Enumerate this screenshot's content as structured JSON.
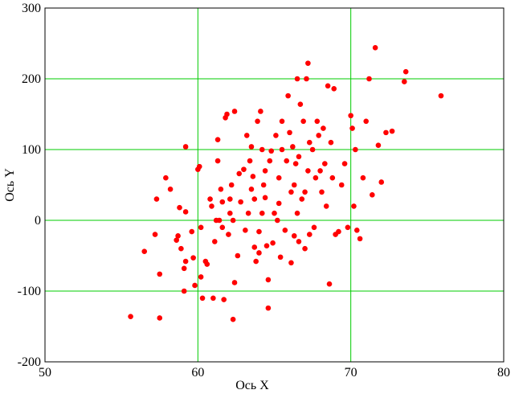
{
  "chart_data": {
    "type": "scatter",
    "title": "",
    "xlabel": "Ось X",
    "ylabel": "Ось Y",
    "xlim": [
      50,
      80
    ],
    "ylim": [
      -200,
      300
    ],
    "x_ticks": [
      50,
      60,
      70,
      80
    ],
    "y_ticks": [
      -200,
      -100,
      0,
      100,
      200,
      300
    ],
    "x_tick_labels": [
      "50",
      "60",
      "70",
      "80"
    ],
    "y_tick_labels": [
      "-200",
      "-100",
      "0",
      "100",
      "200",
      "300"
    ],
    "grid": true,
    "legend": "none",
    "colors": {
      "point": "#ff0000",
      "grid": "#00cc00",
      "frame": "#000000"
    },
    "series": [
      {
        "points": [
          [
            55.6,
            -136
          ],
          [
            56.5,
            -44
          ],
          [
            57.2,
            -20
          ],
          [
            57.3,
            30
          ],
          [
            57.5,
            -138
          ],
          [
            57.5,
            -76
          ],
          [
            57.9,
            60
          ],
          [
            58.2,
            44
          ],
          [
            58.6,
            -28
          ],
          [
            58.7,
            -22
          ],
          [
            58.8,
            18
          ],
          [
            58.9,
            -40
          ],
          [
            59.1,
            -100
          ],
          [
            59.1,
            -68
          ],
          [
            59.2,
            -58
          ],
          [
            59.2,
            104
          ],
          [
            59.2,
            12
          ],
          [
            59.6,
            -16
          ],
          [
            59.7,
            -53
          ],
          [
            59.8,
            -92
          ],
          [
            60.0,
            72
          ],
          [
            60.1,
            76
          ],
          [
            60.2,
            -10
          ],
          [
            60.2,
            -80
          ],
          [
            60.3,
            -110
          ],
          [
            60.5,
            -58
          ],
          [
            60.6,
            -62
          ],
          [
            60.8,
            30
          ],
          [
            60.9,
            20
          ],
          [
            61.0,
            -110
          ],
          [
            61.1,
            -30
          ],
          [
            61.2,
            0
          ],
          [
            61.3,
            84
          ],
          [
            61.3,
            114
          ],
          [
            61.4,
            0
          ],
          [
            61.5,
            44
          ],
          [
            61.6,
            26
          ],
          [
            61.6,
            -10
          ],
          [
            61.7,
            -112
          ],
          [
            61.8,
            145
          ],
          [
            61.9,
            150
          ],
          [
            62.0,
            -20
          ],
          [
            62.1,
            30
          ],
          [
            62.1,
            10
          ],
          [
            62.2,
            50
          ],
          [
            62.3,
            0
          ],
          [
            62.3,
            -140
          ],
          [
            62.4,
            -88
          ],
          [
            62.4,
            154
          ],
          [
            62.6,
            -50
          ],
          [
            62.7,
            66
          ],
          [
            62.8,
            26
          ],
          [
            63.0,
            72
          ],
          [
            63.1,
            -14
          ],
          [
            63.2,
            120
          ],
          [
            63.3,
            10
          ],
          [
            63.4,
            84
          ],
          [
            63.5,
            104
          ],
          [
            63.5,
            44
          ],
          [
            63.6,
            62
          ],
          [
            63.7,
            30
          ],
          [
            63.7,
            -38
          ],
          [
            63.8,
            -58
          ],
          [
            63.9,
            140
          ],
          [
            64.0,
            -46
          ],
          [
            64.0,
            -16
          ],
          [
            64.1,
            154
          ],
          [
            64.2,
            10
          ],
          [
            64.2,
            100
          ],
          [
            64.3,
            50
          ],
          [
            64.4,
            32
          ],
          [
            64.4,
            70
          ],
          [
            64.5,
            -36
          ],
          [
            64.6,
            -84
          ],
          [
            64.6,
            -124
          ],
          [
            64.7,
            84
          ],
          [
            64.8,
            98
          ],
          [
            64.9,
            -32
          ],
          [
            65.0,
            10
          ],
          [
            65.1,
            120
          ],
          [
            65.2,
            0
          ],
          [
            65.3,
            60
          ],
          [
            65.3,
            24
          ],
          [
            65.4,
            -52
          ],
          [
            65.5,
            100
          ],
          [
            65.5,
            140
          ],
          [
            65.7,
            -14
          ],
          [
            65.8,
            84
          ],
          [
            65.9,
            176
          ],
          [
            66.0,
            124
          ],
          [
            66.1,
            -60
          ],
          [
            66.1,
            40
          ],
          [
            66.2,
            104
          ],
          [
            66.3,
            50
          ],
          [
            66.3,
            -22
          ],
          [
            66.4,
            80
          ],
          [
            66.5,
            200
          ],
          [
            66.5,
            10
          ],
          [
            66.6,
            90
          ],
          [
            66.6,
            -30
          ],
          [
            66.7,
            164
          ],
          [
            66.8,
            30
          ],
          [
            66.9,
            140
          ],
          [
            67.0,
            -40
          ],
          [
            67.0,
            40
          ],
          [
            67.1,
            200
          ],
          [
            67.2,
            222
          ],
          [
            67.2,
            70
          ],
          [
            67.3,
            110
          ],
          [
            67.3,
            -20
          ],
          [
            67.5,
            100
          ],
          [
            67.6,
            -10
          ],
          [
            67.7,
            60
          ],
          [
            67.8,
            140
          ],
          [
            67.9,
            120
          ],
          [
            68.0,
            70
          ],
          [
            68.1,
            40
          ],
          [
            68.2,
            130
          ],
          [
            68.3,
            80
          ],
          [
            68.4,
            20
          ],
          [
            68.5,
            190
          ],
          [
            68.6,
            -90
          ],
          [
            68.7,
            110
          ],
          [
            68.8,
            60
          ],
          [
            68.9,
            186
          ],
          [
            69.0,
            -20
          ],
          [
            69.2,
            -16
          ],
          [
            69.4,
            50
          ],
          [
            69.6,
            80
          ],
          [
            69.8,
            -10
          ],
          [
            70.0,
            148
          ],
          [
            70.1,
            130
          ],
          [
            70.2,
            20
          ],
          [
            70.3,
            100
          ],
          [
            70.4,
            -14
          ],
          [
            70.6,
            -26
          ],
          [
            70.8,
            60
          ],
          [
            71.0,
            140
          ],
          [
            71.2,
            200
          ],
          [
            71.4,
            36
          ],
          [
            71.6,
            244
          ],
          [
            71.8,
            106
          ],
          [
            72.0,
            54
          ],
          [
            72.3,
            124
          ],
          [
            72.7,
            126
          ],
          [
            73.5,
            196
          ],
          [
            73.6,
            210
          ],
          [
            75.9,
            176
          ]
        ]
      }
    ]
  }
}
